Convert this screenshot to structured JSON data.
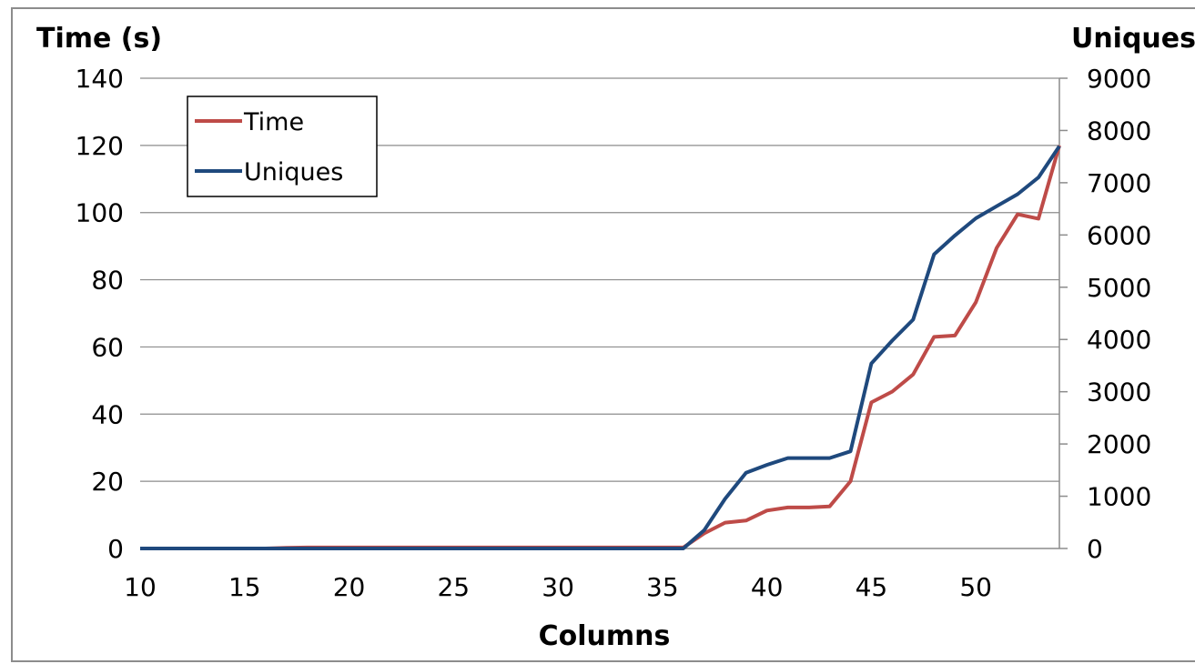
{
  "chart_data": {
    "type": "line",
    "title": "",
    "xlabel": "Columns",
    "ylabel_left": "Time (s)",
    "ylabel_right": "Uniques",
    "xlim": [
      10,
      54
    ],
    "ylim_left": [
      0,
      140
    ],
    "ylim_right": [
      0,
      9000
    ],
    "x_ticks": [
      10,
      15,
      20,
      25,
      30,
      35,
      40,
      45,
      50
    ],
    "y_left_ticks": [
      0,
      20,
      40,
      60,
      80,
      100,
      120,
      140
    ],
    "y_right_ticks": [
      0,
      1000,
      2000,
      3000,
      4000,
      5000,
      6000,
      7000,
      8000,
      9000
    ],
    "grid": true,
    "legend_position": "top-left",
    "x": [
      10,
      11,
      12,
      13,
      14,
      15,
      16,
      17,
      18,
      19,
      20,
      21,
      22,
      23,
      24,
      25,
      26,
      27,
      28,
      29,
      30,
      31,
      32,
      33,
      34,
      35,
      36,
      37,
      38,
      39,
      40,
      41,
      42,
      43,
      44,
      45,
      46,
      47,
      48,
      49,
      50,
      51,
      52,
      53,
      54
    ],
    "series": [
      {
        "name": "Time",
        "axis": "left",
        "color": "#be4b48",
        "values": [
          0,
          0,
          0,
          0,
          0,
          0,
          0,
          0.2,
          0.3,
          0.3,
          0.3,
          0.3,
          0.3,
          0.3,
          0.3,
          0.3,
          0.3,
          0.3,
          0.3,
          0.3,
          0.3,
          0.3,
          0.3,
          0.3,
          0.3,
          0.3,
          0.3,
          4.5,
          7.7,
          8.3,
          11.3,
          12.2,
          12.2,
          12.5,
          20,
          43.5,
          46.7,
          51.8,
          63,
          63.4,
          73.3,
          89.5,
          99.5,
          98.2,
          120
        ]
      },
      {
        "name": "Uniques",
        "axis": "right",
        "color": "#1f497d",
        "values": [
          0,
          0,
          0,
          0,
          0,
          0,
          0,
          0,
          0,
          0,
          0,
          0,
          0,
          0,
          0,
          0,
          0,
          0,
          0,
          0,
          0,
          0,
          0,
          0,
          0,
          0,
          0,
          350,
          950,
          1450,
          1600,
          1730,
          1730,
          1730,
          1860,
          3540,
          3980,
          4380,
          5630,
          5990,
          6320,
          6550,
          6780,
          7100,
          7700
        ]
      }
    ]
  }
}
